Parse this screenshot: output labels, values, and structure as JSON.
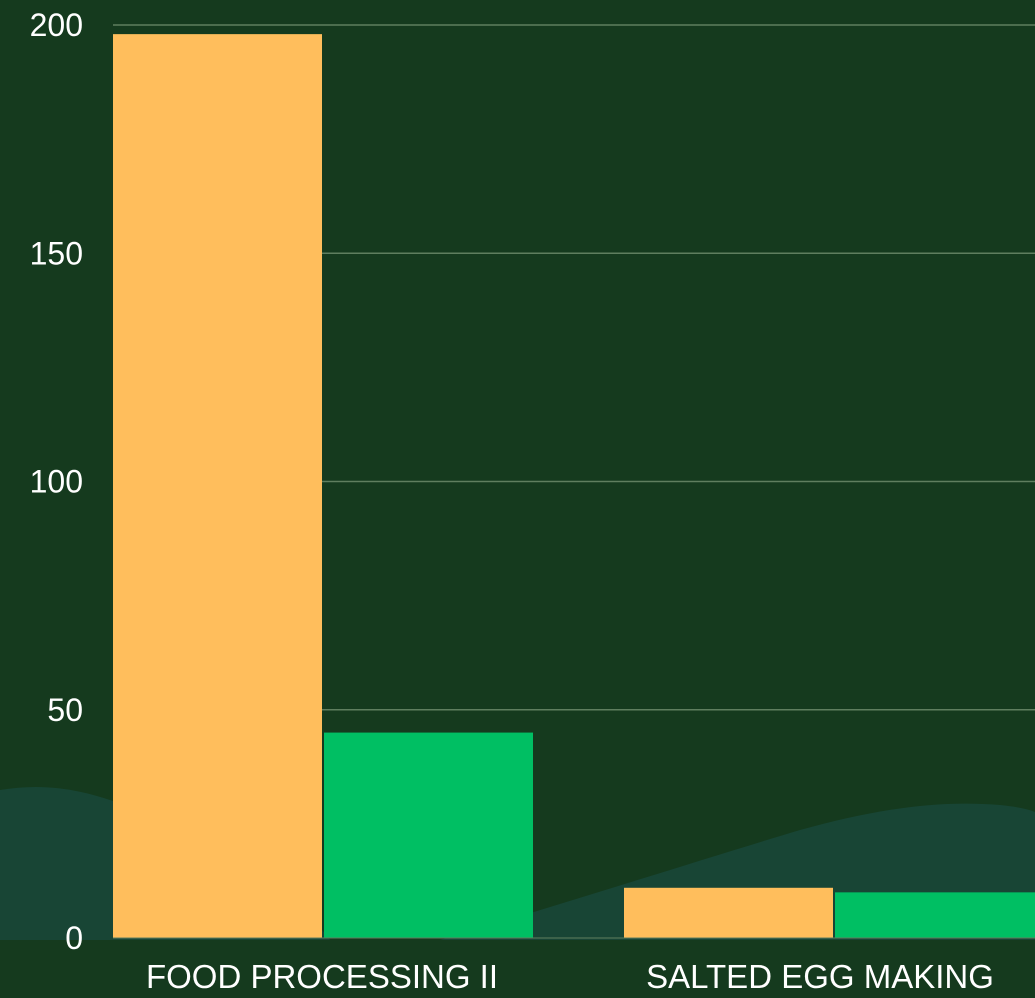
{
  "colors": {
    "background": "#153a1e",
    "wave": "#184535",
    "gridline": "#5f7e5f",
    "axis_text": "#ffffff"
  },
  "chart_data": {
    "type": "bar",
    "categories": [
      "FOOD PROCESSING II",
      "SALTED EGG MAKING"
    ],
    "series": [
      {
        "values": [
          198,
          11
        ],
        "color": "#ffbe5c"
      },
      {
        "values": [
          45,
          10
        ],
        "color": "#00bf63"
      }
    ],
    "yticks": [
      0,
      50,
      100,
      150,
      200
    ],
    "ylim": [
      0,
      200
    ],
    "grid": true,
    "legend": "none",
    "title": "",
    "xlabel": "",
    "ylabel": ""
  }
}
